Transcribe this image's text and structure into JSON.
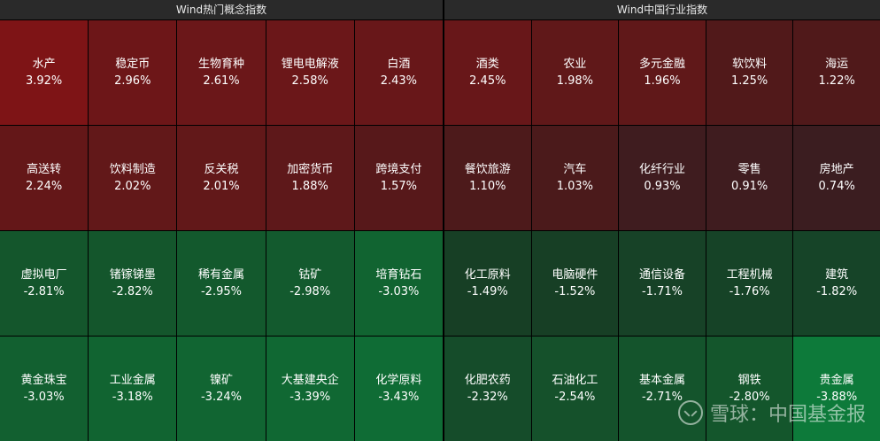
{
  "left": {
    "title": "Wind热门概念指数",
    "tiles": [
      {
        "name": "水产",
        "pct": "3.92%",
        "color": "#7e1416"
      },
      {
        "name": "稳定币",
        "pct": "2.96%",
        "color": "#6d1618"
      },
      {
        "name": "生物育种",
        "pct": "2.61%",
        "color": "#6b1719"
      },
      {
        "name": "锂电电解液",
        "pct": "2.58%",
        "color": "#6b1719"
      },
      {
        "name": "白酒",
        "pct": "2.43%",
        "color": "#681719"
      },
      {
        "name": "高送转",
        "pct": "2.24%",
        "color": "#641718"
      },
      {
        "name": "饮料制造",
        "pct": "2.02%",
        "color": "#621819"
      },
      {
        "name": "反关税",
        "pct": "2.01%",
        "color": "#621819"
      },
      {
        "name": "加密货币",
        "pct": "1.88%",
        "color": "#5e181a"
      },
      {
        "name": "跨境支付",
        "pct": "1.57%",
        "color": "#57181a"
      },
      {
        "name": "虚拟电厂",
        "pct": "-2.81%",
        "color": "#14562c"
      },
      {
        "name": "锗镓锑墨",
        "pct": "-2.82%",
        "color": "#14562c"
      },
      {
        "name": "稀有金属",
        "pct": "-2.95%",
        "color": "#13592d"
      },
      {
        "name": "钴矿",
        "pct": "-2.98%",
        "color": "#135a2e"
      },
      {
        "name": "培育钻石",
        "pct": "-3.03%",
        "color": "#116431"
      },
      {
        "name": "黄金珠宝",
        "pct": "-3.03%",
        "color": "#126030"
      },
      {
        "name": "工业金属",
        "pct": "-3.18%",
        "color": "#116431"
      },
      {
        "name": "镍矿",
        "pct": "-3.24%",
        "color": "#116532"
      },
      {
        "name": "大基建央企",
        "pct": "-3.39%",
        "color": "#106833"
      },
      {
        "name": "化学原料",
        "pct": "-3.43%",
        "color": "#0f6c35"
      }
    ]
  },
  "right": {
    "title": "Wind中国行业指数",
    "tiles": [
      {
        "name": "酒类",
        "pct": "2.45%",
        "color": "#681719"
      },
      {
        "name": "农业",
        "pct": "1.98%",
        "color": "#601819"
      },
      {
        "name": "多元金融",
        "pct": "1.96%",
        "color": "#601819"
      },
      {
        "name": "软饮料",
        "pct": "1.25%",
        "color": "#51191a"
      },
      {
        "name": "海运",
        "pct": "1.22%",
        "color": "#50191a"
      },
      {
        "name": "餐饮旅游",
        "pct": "1.10%",
        "color": "#4d1a1b"
      },
      {
        "name": "汽车",
        "pct": "1.03%",
        "color": "#4b1a1b"
      },
      {
        "name": "化纤行业",
        "pct": "0.93%",
        "color": "#3f1c1f"
      },
      {
        "name": "零售",
        "pct": "0.91%",
        "color": "#3f1c1f"
      },
      {
        "name": "房地产",
        "pct": "0.74%",
        "color": "#3b1d20"
      },
      {
        "name": "化工原料",
        "pct": "-1.49%",
        "color": "#173f25"
      },
      {
        "name": "电脑硬件",
        "pct": "-1.52%",
        "color": "#173f25"
      },
      {
        "name": "通信设备",
        "pct": "-1.71%",
        "color": "#174227"
      },
      {
        "name": "工程机械",
        "pct": "-1.76%",
        "color": "#164327"
      },
      {
        "name": "建筑",
        "pct": "-1.82%",
        "color": "#164428"
      },
      {
        "name": "化肥农药",
        "pct": "-2.32%",
        "color": "#154c2a"
      },
      {
        "name": "石油化工",
        "pct": "-2.54%",
        "color": "#15512b"
      },
      {
        "name": "基本金属",
        "pct": "-2.71%",
        "color": "#14542c"
      },
      {
        "name": "钢铁",
        "pct": "-2.80%",
        "color": "#14562c"
      },
      {
        "name": "贵金属",
        "pct": "-3.88%",
        "color": "#0d7a3a"
      }
    ]
  },
  "watermark": "雪球：中国基金报"
}
